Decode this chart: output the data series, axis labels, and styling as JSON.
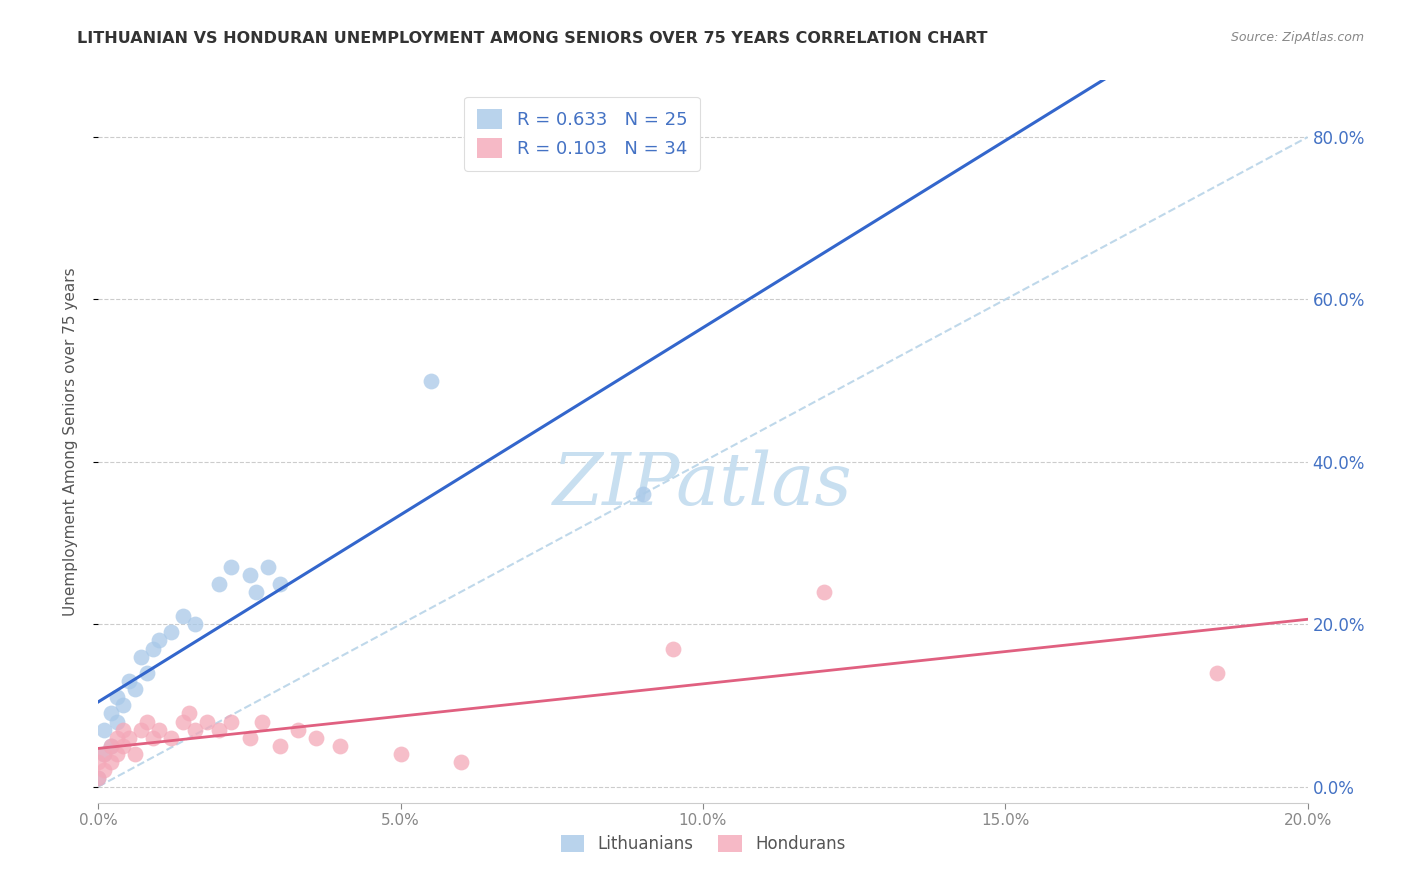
{
  "title": "LITHUANIAN VS HONDURAN UNEMPLOYMENT AMONG SENIORS OVER 75 YEARS CORRELATION CHART",
  "source": "Source: ZipAtlas.com",
  "ylabel": "Unemployment Among Seniors over 75 years",
  "R_lithuanian": 0.633,
  "N_lithuanian": 25,
  "R_honduran": 0.103,
  "N_honduran": 34,
  "legend_lithuanian": "Lithuanians",
  "legend_honduran": "Hondurans",
  "color_blue": "#a8c8e8",
  "color_blue_line": "#3366cc",
  "color_pink": "#f4a8b8",
  "color_pink_line": "#e06080",
  "color_dashed": "#b8d4e8",
  "xlim": [
    0.0,
    0.2
  ],
  "ylim": [
    -0.02,
    0.87
  ],
  "yticks_right": [
    0.0,
    0.2,
    0.4,
    0.6,
    0.8
  ],
  "xticks": [
    0.0,
    0.05,
    0.1,
    0.15,
    0.2
  ],
  "lit_x": [
    0.0,
    0.001,
    0.001,
    0.002,
    0.002,
    0.003,
    0.003,
    0.004,
    0.005,
    0.006,
    0.007,
    0.008,
    0.009,
    0.01,
    0.012,
    0.014,
    0.016,
    0.02,
    0.022,
    0.025,
    0.026,
    0.028,
    0.03,
    0.055,
    0.09
  ],
  "lit_y": [
    0.01,
    0.04,
    0.07,
    0.05,
    0.09,
    0.08,
    0.11,
    0.1,
    0.13,
    0.12,
    0.16,
    0.14,
    0.17,
    0.18,
    0.19,
    0.21,
    0.2,
    0.25,
    0.27,
    0.26,
    0.24,
    0.27,
    0.25,
    0.5,
    0.36
  ],
  "hon_x": [
    0.0,
    0.0,
    0.001,
    0.001,
    0.002,
    0.002,
    0.003,
    0.003,
    0.004,
    0.004,
    0.005,
    0.006,
    0.007,
    0.008,
    0.009,
    0.01,
    0.012,
    0.014,
    0.015,
    0.016,
    0.018,
    0.02,
    0.022,
    0.025,
    0.027,
    0.03,
    0.033,
    0.036,
    0.04,
    0.05,
    0.06,
    0.095,
    0.12,
    0.185
  ],
  "hon_y": [
    0.01,
    0.03,
    0.02,
    0.04,
    0.03,
    0.05,
    0.04,
    0.06,
    0.05,
    0.07,
    0.06,
    0.04,
    0.07,
    0.08,
    0.06,
    0.07,
    0.06,
    0.08,
    0.09,
    0.07,
    0.08,
    0.07,
    0.08,
    0.06,
    0.08,
    0.05,
    0.07,
    0.06,
    0.05,
    0.04,
    0.03,
    0.17,
    0.24,
    0.14
  ],
  "watermark_text": "ZIPatlas",
  "watermark_color": "#c8dff0"
}
